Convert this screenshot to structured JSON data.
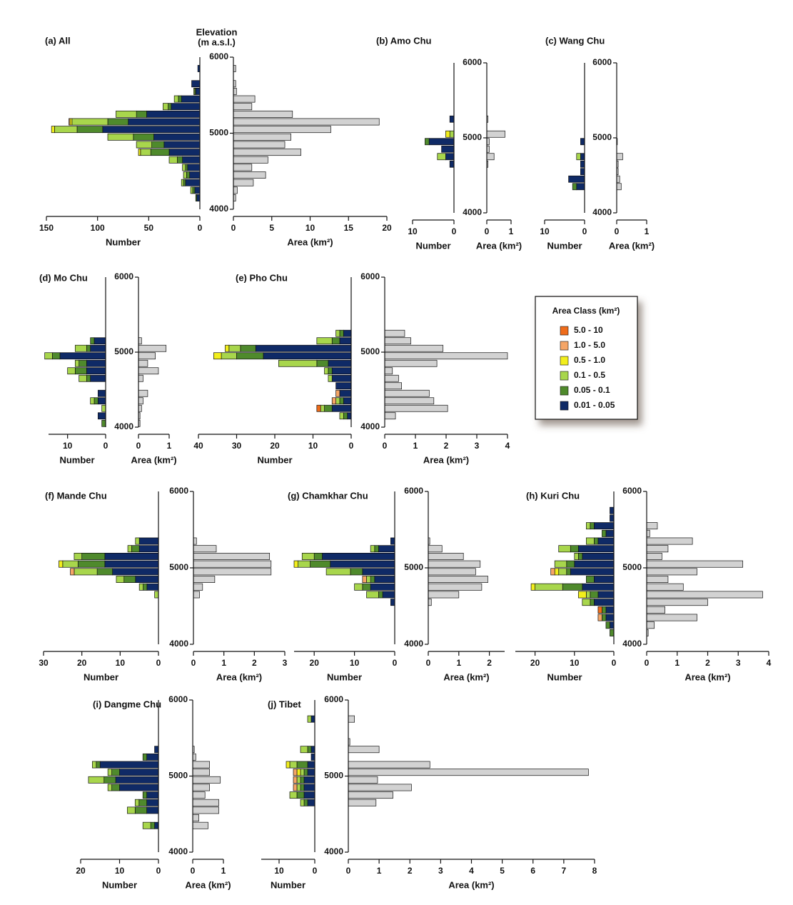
{
  "legend": {
    "title": "Area Class (km²)",
    "entries": [
      {
        "name": "5.0 - 10",
        "color": "#ef6c1a"
      },
      {
        "name": "1.0 - 5.0",
        "color": "#f5a566"
      },
      {
        "name": "0.5 - 1.0",
        "color": "#f2ee1c"
      },
      {
        "name": "0.1 - 0.5",
        "color": "#a8d64c"
      },
      {
        "name": "0.05 - 0.1",
        "color": "#4f8a2c"
      },
      {
        "name": "0.01 - 0.05",
        "color": "#0f2a66"
      }
    ]
  },
  "chart_data": [
    {
      "type": "bar",
      "title": "(a) All",
      "ylabel": [
        "Elevation",
        "(m a.s.l.)"
      ],
      "ylim": [
        4000,
        6000
      ],
      "yticks": [
        4000,
        5000,
        6000
      ],
      "elevation": [
        4150,
        4250,
        4350,
        4450,
        4550,
        4650,
        4750,
        4850,
        4950,
        5050,
        5150,
        5250,
        5350,
        5450,
        5550,
        5650,
        5750,
        5850
      ],
      "number_series": [
        [
          0,
          0,
          0,
          0,
          0,
          0,
          0,
          0,
          0,
          0,
          0,
          0,
          0,
          0,
          0,
          0,
          0,
          0
        ],
        [
          0,
          0,
          0,
          0,
          0,
          0,
          0,
          0,
          0,
          0,
          1,
          0,
          0,
          0,
          0,
          0,
          0,
          0
        ],
        [
          0,
          0,
          0,
          0,
          0,
          0,
          2,
          0,
          0,
          3,
          2,
          0,
          0,
          0,
          0,
          0,
          0,
          0
        ],
        [
          0,
          2,
          2,
          3,
          3,
          8,
          10,
          15,
          25,
          22,
          35,
          20,
          5,
          4,
          1,
          0,
          0,
          0
        ],
        [
          1,
          2,
          2,
          3,
          2,
          5,
          18,
          12,
          20,
          25,
          20,
          10,
          3,
          3,
          1,
          0,
          0,
          0
        ],
        [
          3,
          5,
          14,
          10,
          12,
          17,
          30,
          35,
          45,
          95,
          70,
          52,
          28,
          18,
          4,
          8,
          0,
          2
        ]
      ],
      "area": [
        0.3,
        0.5,
        2.6,
        4.2,
        2.4,
        4.5,
        8.8,
        6.7,
        7.5,
        12.7,
        19,
        7.7,
        2.4,
        2.8,
        0.4,
        0.3,
        0,
        0.3
      ],
      "area_color": "#d2d2d2",
      "number_label": "Number",
      "number_xlim": [
        0,
        150
      ],
      "number_xticks": [
        0,
        50,
        100,
        150
      ],
      "area_label": "Area (km²)",
      "area_xlim": [
        0,
        20
      ],
      "area_xticks": [
        0,
        5,
        10,
        15,
        20
      ]
    },
    {
      "type": "bar",
      "title": "(b) Amo Chu",
      "ylim": [
        4000,
        6000
      ],
      "yticks": [
        4000,
        5000,
        6000
      ],
      "elevation": [
        4650,
        4750,
        4850,
        4950,
        5050,
        5150,
        5250
      ],
      "number_series": [
        [
          0,
          0,
          0,
          0,
          0,
          0,
          0
        ],
        [
          0,
          0,
          0,
          0,
          0,
          0,
          0
        ],
        [
          0,
          0,
          0,
          0,
          1,
          0,
          0
        ],
        [
          0,
          2,
          0,
          0,
          1,
          0,
          0
        ],
        [
          0,
          0,
          0,
          1,
          0,
          0,
          0
        ],
        [
          1,
          2,
          3,
          6,
          0,
          0,
          1
        ]
      ],
      "area": [
        0.05,
        0.3,
        0.1,
        0.1,
        0.75,
        0,
        0.05
      ],
      "area_color": "#d2d2d2",
      "number_label": "Number",
      "number_xlim": [
        0,
        10
      ],
      "number_xticks": [
        0,
        10
      ],
      "area_label": "Area (km²)",
      "area_xlim": [
        0,
        1
      ],
      "area_xticks": [
        0,
        1
      ]
    },
    {
      "type": "bar",
      "title": "(c) Wang Chu",
      "ylim": [
        4000,
        6000
      ],
      "yticks": [
        4000,
        5000,
        6000
      ],
      "elevation": [
        4350,
        4450,
        4550,
        4650,
        4750,
        4850,
        4950
      ],
      "number_series": [
        [
          0,
          0,
          0,
          0,
          0,
          0,
          0
        ],
        [
          0,
          0,
          0,
          0,
          0,
          0,
          0
        ],
        [
          0,
          0,
          0,
          0,
          0,
          0,
          0
        ],
        [
          0,
          0,
          0,
          0,
          1,
          0,
          0
        ],
        [
          1,
          0,
          0,
          0,
          0,
          0,
          0
        ],
        [
          2,
          4,
          1,
          1,
          1,
          0,
          1
        ]
      ],
      "area": [
        0.15,
        0.1,
        0.05,
        0.05,
        0.2,
        0,
        0.02
      ],
      "area_color": "#d2d2d2",
      "number_label": "Number",
      "number_xlim": [
        0,
        10
      ],
      "number_xticks": [
        0,
        10
      ],
      "area_label": "Area (km²)",
      "area_xlim": [
        0,
        1
      ],
      "area_xticks": [
        0,
        1
      ]
    },
    {
      "type": "bar",
      "title": "(d) Mo Chu",
      "ylim": [
        4000,
        6000
      ],
      "yticks": [
        4000,
        5000,
        6000
      ],
      "elevation": [
        4050,
        4150,
        4250,
        4350,
        4450,
        4550,
        4650,
        4750,
        4850,
        4950,
        5050,
        5150
      ],
      "number_series": [
        [
          0,
          0,
          0,
          0,
          0,
          0,
          0,
          0,
          0,
          0,
          0,
          0
        ],
        [
          0,
          0,
          0,
          0,
          0,
          0,
          0,
          0,
          0,
          0,
          0,
          0
        ],
        [
          0,
          0,
          0,
          0,
          0,
          0,
          0,
          0,
          0,
          0,
          0,
          0
        ],
        [
          0,
          0,
          1,
          1,
          0,
          0,
          2,
          2,
          1,
          2,
          3,
          0
        ],
        [
          1,
          0,
          0,
          1,
          0,
          0,
          1,
          3,
          2,
          2,
          1,
          1
        ],
        [
          0,
          2,
          0,
          2,
          2,
          0,
          4,
          5,
          5,
          12,
          4,
          3
        ]
      ],
      "area": [
        0.05,
        0.05,
        0.1,
        0.15,
        0.3,
        0,
        0.15,
        0.65,
        0.3,
        0.55,
        0.9,
        0.1
      ],
      "area_color": "#d2d2d2",
      "number_label": "Number",
      "number_xlim": [
        0,
        15
      ],
      "number_xticks": [
        0,
        10
      ],
      "area_label": "Area (km²)",
      "area_xlim": [
        0,
        1
      ],
      "area_xticks": [
        0,
        1
      ]
    },
    {
      "type": "bar",
      "title": "(e) Pho Chu",
      "ylim": [
        4000,
        6000
      ],
      "yticks": [
        4000,
        5000,
        6000
      ],
      "elevation": [
        4150,
        4250,
        4350,
        4450,
        4550,
        4650,
        4750,
        4850,
        4950,
        5050,
        5150,
        5250
      ],
      "number_series": [
        [
          0,
          1,
          0,
          0,
          0,
          0,
          0,
          0,
          0,
          0,
          0,
          0
        ],
        [
          0,
          0,
          1,
          1,
          0,
          0,
          0,
          0,
          0,
          0,
          0,
          0
        ],
        [
          0,
          0,
          0,
          0,
          0,
          0,
          0,
          0,
          2,
          1,
          0,
          0
        ],
        [
          1,
          1,
          1,
          0,
          0,
          1,
          1,
          10,
          4,
          3,
          4,
          1
        ],
        [
          1,
          2,
          1,
          0,
          0,
          0,
          1,
          3,
          7,
          4,
          2,
          1
        ],
        [
          1,
          5,
          2,
          3,
          4,
          5,
          5,
          6,
          23,
          25,
          3,
          2
        ]
      ],
      "area": [
        0.35,
        2.05,
        1.6,
        1.45,
        0.55,
        0.45,
        0.25,
        1.7,
        4,
        1.9,
        0.85,
        0.65
      ],
      "area_color": "#d2d2d2",
      "number_label": "Number",
      "number_xlim": [
        0,
        40
      ],
      "number_xticks": [
        0,
        10,
        20,
        30,
        40
      ],
      "area_label": "Area (km²)",
      "area_xlim": [
        0,
        4
      ],
      "area_xticks": [
        0,
        1,
        2,
        3,
        4
      ]
    },
    {
      "type": "bar",
      "title": "(f) Mande Chu",
      "ylim": [
        4000,
        6000
      ],
      "yticks": [
        4000,
        5000,
        6000
      ],
      "elevation": [
        4650,
        4750,
        4850,
        4950,
        5050,
        5150,
        5250,
        5350
      ],
      "number_series": [
        [
          0,
          0,
          0,
          0,
          0,
          0,
          0,
          0
        ],
        [
          0,
          0,
          0,
          1,
          0,
          0,
          0,
          0
        ],
        [
          0,
          0,
          0,
          0,
          1,
          0,
          0,
          0
        ],
        [
          1,
          1,
          2,
          6,
          4,
          2,
          1,
          1
        ],
        [
          0,
          1,
          3,
          4,
          7,
          6,
          2,
          0
        ],
        [
          0,
          3,
          6,
          12,
          14,
          14,
          5,
          5
        ]
      ],
      "area": [
        0.2,
        0.3,
        0.7,
        2.55,
        2.55,
        2.5,
        0.75,
        0.1
      ],
      "area_color": "#d2d2d2",
      "number_label": "Number",
      "number_xlim": [
        0,
        30
      ],
      "number_xticks": [
        0,
        10,
        20,
        30
      ],
      "area_label": "Area (km²)",
      "area_xlim": [
        0,
        3
      ],
      "area_xticks": [
        0,
        1,
        2,
        3
      ]
    },
    {
      "type": "bar",
      "title": "(g) Chamkhar Chu",
      "ylim": [
        4000,
        6000
      ],
      "yticks": [
        4000,
        5000,
        6000
      ],
      "elevation": [
        4550,
        4650,
        4750,
        4850,
        4950,
        5050,
        5150,
        5250,
        5350
      ],
      "number_series": [
        [
          0,
          0,
          0,
          0,
          0,
          0,
          0,
          0,
          0
        ],
        [
          0,
          0,
          0,
          1,
          0,
          0,
          0,
          0,
          0
        ],
        [
          0,
          0,
          0,
          0,
          0,
          1,
          0,
          0,
          0
        ],
        [
          0,
          3,
          2,
          1,
          6,
          3,
          3,
          1,
          0
        ],
        [
          0,
          1,
          2,
          1,
          3,
          5,
          2,
          1,
          0
        ],
        [
          1,
          3,
          6,
          5,
          8,
          16,
          18,
          4,
          1
        ]
      ],
      "area": [
        0.1,
        1.0,
        1.75,
        1.95,
        1.55,
        1.7,
        1.15,
        0.45,
        0.05
      ],
      "area_color": "#d2d2d2",
      "number_label": "Number",
      "number_xlim": [
        0,
        25
      ],
      "number_xticks": [
        0,
        10,
        20
      ],
      "area_label": "Area (km²)",
      "area_xlim": [
        0,
        2.5
      ],
      "area_xticks": [
        0,
        1,
        2
      ]
    },
    {
      "type": "bar",
      "title": "(h) Kuri Chu",
      "ylim": [
        4000,
        6000
      ],
      "yticks": [
        4000,
        5000,
        6000
      ],
      "elevation": [
        4150,
        4250,
        4350,
        4450,
        4550,
        4650,
        4750,
        4850,
        4950,
        5050,
        5150,
        5250,
        5350,
        5450,
        5550,
        5650,
        5750
      ],
      "number_series": [
        [
          0,
          0,
          0,
          1,
          0,
          0,
          0,
          0,
          0,
          0,
          0,
          0,
          0,
          0,
          0,
          0,
          0
        ],
        [
          0,
          0,
          1,
          0,
          0,
          0,
          0,
          0,
          1,
          0,
          0,
          0,
          0,
          0,
          0,
          0,
          0
        ],
        [
          0,
          0,
          0,
          0,
          0,
          2,
          1,
          0,
          1,
          0,
          0,
          0,
          0,
          0,
          0,
          0,
          0
        ],
        [
          0,
          0,
          0,
          0,
          2,
          1,
          7,
          0,
          2,
          3,
          1,
          3,
          2,
          0,
          1,
          0,
          0
        ],
        [
          1,
          1,
          1,
          1,
          1,
          2,
          5,
          2,
          1,
          2,
          1,
          2,
          1,
          1,
          1,
          0,
          0
        ],
        [
          0,
          1,
          2,
          2,
          5,
          4,
          8,
          5,
          11,
          10,
          8,
          9,
          4,
          2,
          5,
          1,
          1
        ]
      ],
      "area": [
        0.05,
        0.25,
        1.65,
        0.6,
        2.0,
        3.8,
        1.2,
        0.7,
        1.65,
        3.15,
        0.5,
        0.7,
        1.5,
        0.1,
        0.35,
        0,
        0
      ],
      "area_color": "#d2d2d2",
      "number_label": "Number",
      "number_xlim": [
        0,
        25
      ],
      "number_xticks": [
        0,
        10,
        20
      ],
      "area_label": "Area (km²)",
      "area_xlim": [
        0,
        4
      ],
      "area_xticks": [
        0,
        1,
        2,
        3,
        4
      ]
    },
    {
      "type": "bar",
      "title": "(i) Dangme Chu",
      "ylim": [
        4000,
        6000
      ],
      "yticks": [
        4000,
        5000,
        6000
      ],
      "elevation": [
        4350,
        4450,
        4550,
        4650,
        4750,
        4850,
        4950,
        5050,
        5150,
        5250,
        5350
      ],
      "number_series": [
        [
          0,
          0,
          0,
          0,
          0,
          0,
          0,
          0,
          0,
          0,
          0
        ],
        [
          0,
          0,
          0,
          0,
          0,
          0,
          0,
          0,
          0,
          0,
          0
        ],
        [
          0,
          0,
          0,
          0,
          0,
          0,
          0,
          0,
          0,
          0,
          0
        ],
        [
          2,
          0,
          2,
          1,
          0,
          1,
          4,
          1,
          1,
          0,
          0
        ],
        [
          1,
          0,
          3,
          2,
          1,
          2,
          3,
          2,
          1,
          1,
          0
        ],
        [
          1,
          0,
          3,
          3,
          3,
          10,
          11,
          10,
          15,
          3,
          1
        ]
      ],
      "area": [
        0.5,
        0.2,
        0.85,
        0.85,
        0.4,
        0.55,
        0.9,
        0.55,
        0.55,
        0.1,
        0.05
      ],
      "area_color": "#d2d2d2",
      "number_label": "Number",
      "number_xlim": [
        0,
        20
      ],
      "number_xticks": [
        0,
        10,
        20
      ],
      "area_label": "Area (km²)",
      "area_xlim": [
        0,
        1
      ],
      "area_xticks": [
        0,
        1
      ]
    },
    {
      "type": "bar",
      "title": "(j) Tibet",
      "ylim": [
        4000,
        6000
      ],
      "yticks": [
        4000,
        5000,
        6000
      ],
      "elevation": [
        4650,
        4750,
        4850,
        4950,
        5050,
        5150,
        5250,
        5350,
        5450,
        5550,
        5650,
        5750
      ],
      "number_series": [
        [
          0,
          0,
          0,
          0,
          0,
          0,
          0,
          0,
          0,
          0,
          0,
          0
        ],
        [
          0,
          0,
          1,
          1,
          1,
          0,
          0,
          0,
          0,
          0,
          0,
          0
        ],
        [
          0,
          0,
          0,
          0,
          1,
          1,
          0,
          0,
          0,
          0,
          0,
          0
        ],
        [
          1,
          2,
          1,
          1,
          1,
          2,
          0,
          2,
          0,
          0,
          0,
          1
        ],
        [
          1,
          2,
          1,
          1,
          1,
          3,
          0,
          1,
          0,
          0,
          0,
          0
        ],
        [
          2,
          3,
          3,
          3,
          2,
          2,
          1,
          1,
          0,
          0,
          0,
          1
        ]
      ],
      "area": [
        0.9,
        1.45,
        2.05,
        0.95,
        7.8,
        2.65,
        0,
        1.0,
        0.05,
        0,
        0,
        0.2
      ],
      "area_color": "#d2d2d2",
      "number_label": "Number",
      "number_xlim": [
        0,
        15
      ],
      "number_xticks": [
        0,
        10
      ],
      "area_label": "Area (km²)",
      "area_xlim": [
        0,
        8
      ],
      "area_xticks": [
        0,
        1,
        2,
        3,
        4,
        5,
        6,
        7,
        8
      ]
    }
  ]
}
